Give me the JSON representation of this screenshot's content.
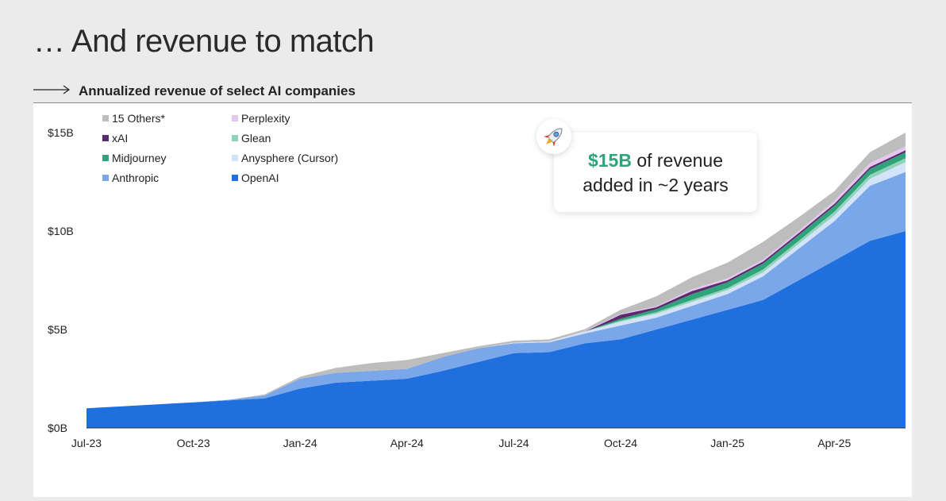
{
  "header": {
    "title": "… And revenue to match",
    "subtitle": "Annualized revenue of select AI companies"
  },
  "callout": {
    "highlight": "$15B",
    "line1_rest": " of revenue",
    "line2": "added in ~2 years",
    "icon": "rocket-icon"
  },
  "chart_data": {
    "type": "area",
    "stacked": true,
    "title": "Annualized revenue of select AI companies",
    "xlabel": "",
    "ylabel": "",
    "ylim": [
      0,
      16
    ],
    "y_unit": "$B",
    "y_ticks": [
      0,
      5,
      10,
      15
    ],
    "y_tick_labels": [
      "$0B",
      "$5B",
      "$10B",
      "$15B"
    ],
    "x_tick_labels": [
      "Jul-23",
      "Oct-23",
      "Jan-24",
      "Apr-24",
      "Jul-24",
      "Oct-24",
      "Jan-25",
      "Apr-25"
    ],
    "x_tick_months": [
      0,
      3,
      6,
      9,
      12,
      15,
      18,
      21
    ],
    "x_months": [
      0,
      1,
      2,
      3,
      4,
      5,
      6,
      7,
      8,
      9,
      10,
      11,
      12,
      13,
      14,
      15,
      16,
      17,
      18,
      19,
      20,
      21,
      22,
      23
    ],
    "legend_position": "top-left",
    "series": [
      {
        "name": "OpenAI",
        "color": "#1f6fdf",
        "values": [
          1.0,
          1.1,
          1.2,
          1.3,
          1.4,
          1.5,
          2.0,
          2.3,
          2.4,
          2.5,
          2.9,
          3.35,
          3.8,
          3.85,
          4.3,
          4.5,
          5.0,
          5.5,
          6.0,
          6.5,
          7.5,
          8.5,
          9.5,
          10.0
        ]
      },
      {
        "name": "Anthropic",
        "color": "#7aa6ea",
        "values": [
          0,
          0,
          0,
          0,
          0.03,
          0.15,
          0.5,
          0.5,
          0.5,
          0.5,
          0.7,
          0.7,
          0.5,
          0.5,
          0.5,
          0.7,
          0.6,
          0.7,
          0.8,
          1.2,
          1.6,
          2.0,
          2.8,
          3.0
        ]
      },
      {
        "name": "Anysphere (Cursor)",
        "color": "#d3e3fa",
        "values": [
          0,
          0,
          0,
          0,
          0,
          0,
          0,
          0,
          0,
          0,
          0,
          0,
          0.03,
          0.05,
          0.1,
          0.2,
          0.2,
          0.2,
          0.2,
          0.2,
          0.25,
          0.3,
          0.35,
          0.5
        ]
      },
      {
        "name": "Glean",
        "color": "#8fd3b8",
        "values": [
          0,
          0,
          0,
          0,
          0,
          0,
          0,
          0,
          0,
          0,
          0,
          0,
          0,
          0,
          0,
          0.05,
          0.08,
          0.1,
          0.1,
          0.15,
          0.15,
          0.18,
          0.2,
          0.2
        ]
      },
      {
        "name": "Midjourney",
        "color": "#2fa37a",
        "values": [
          0,
          0,
          0,
          0,
          0,
          0,
          0,
          0,
          0,
          0,
          0,
          0,
          0,
          0,
          0,
          0.1,
          0.15,
          0.3,
          0.3,
          0.3,
          0.3,
          0.3,
          0.3,
          0.3
        ]
      },
      {
        "name": "xAI",
        "color": "#5b2a6e",
        "values": [
          0,
          0,
          0,
          0,
          0,
          0,
          0,
          0,
          0,
          0,
          0,
          0,
          0,
          0,
          0,
          0.2,
          0.1,
          0.15,
          0.1,
          0.1,
          0.1,
          0.1,
          0.1,
          0.1
        ]
      },
      {
        "name": "Perplexity",
        "color": "#e6c6ee",
        "values": [
          0,
          0,
          0,
          0,
          0,
          0,
          0,
          0,
          0,
          0,
          0,
          0,
          0,
          0,
          0.02,
          0.05,
          0.05,
          0.1,
          0.1,
          0.1,
          0.1,
          0.15,
          0.2,
          0.2
        ]
      },
      {
        "name": "15 Others*",
        "color": "#bdbdbd",
        "values": [
          0,
          0,
          0,
          0,
          0,
          0.05,
          0.1,
          0.25,
          0.4,
          0.45,
          0.2,
          0.1,
          0.1,
          0.1,
          0.1,
          0.2,
          0.5,
          0.6,
          0.8,
          0.9,
          0.7,
          0.5,
          0.55,
          0.7
        ]
      }
    ],
    "legend": [
      {
        "name": "15 Others*",
        "color": "#bdbdbd"
      },
      {
        "name": "Perplexity",
        "color": "#e6c6ee"
      },
      {
        "name": "xAI",
        "color": "#5b2a6e"
      },
      {
        "name": "Glean",
        "color": "#8fd3b8"
      },
      {
        "name": "Midjourney",
        "color": "#2fa37a"
      },
      {
        "name": "Anysphere (Cursor)",
        "color": "#d3e3fa"
      },
      {
        "name": "Anthropic",
        "color": "#7aa6ea"
      },
      {
        "name": "OpenAI",
        "color": "#1f6fdf"
      }
    ]
  }
}
